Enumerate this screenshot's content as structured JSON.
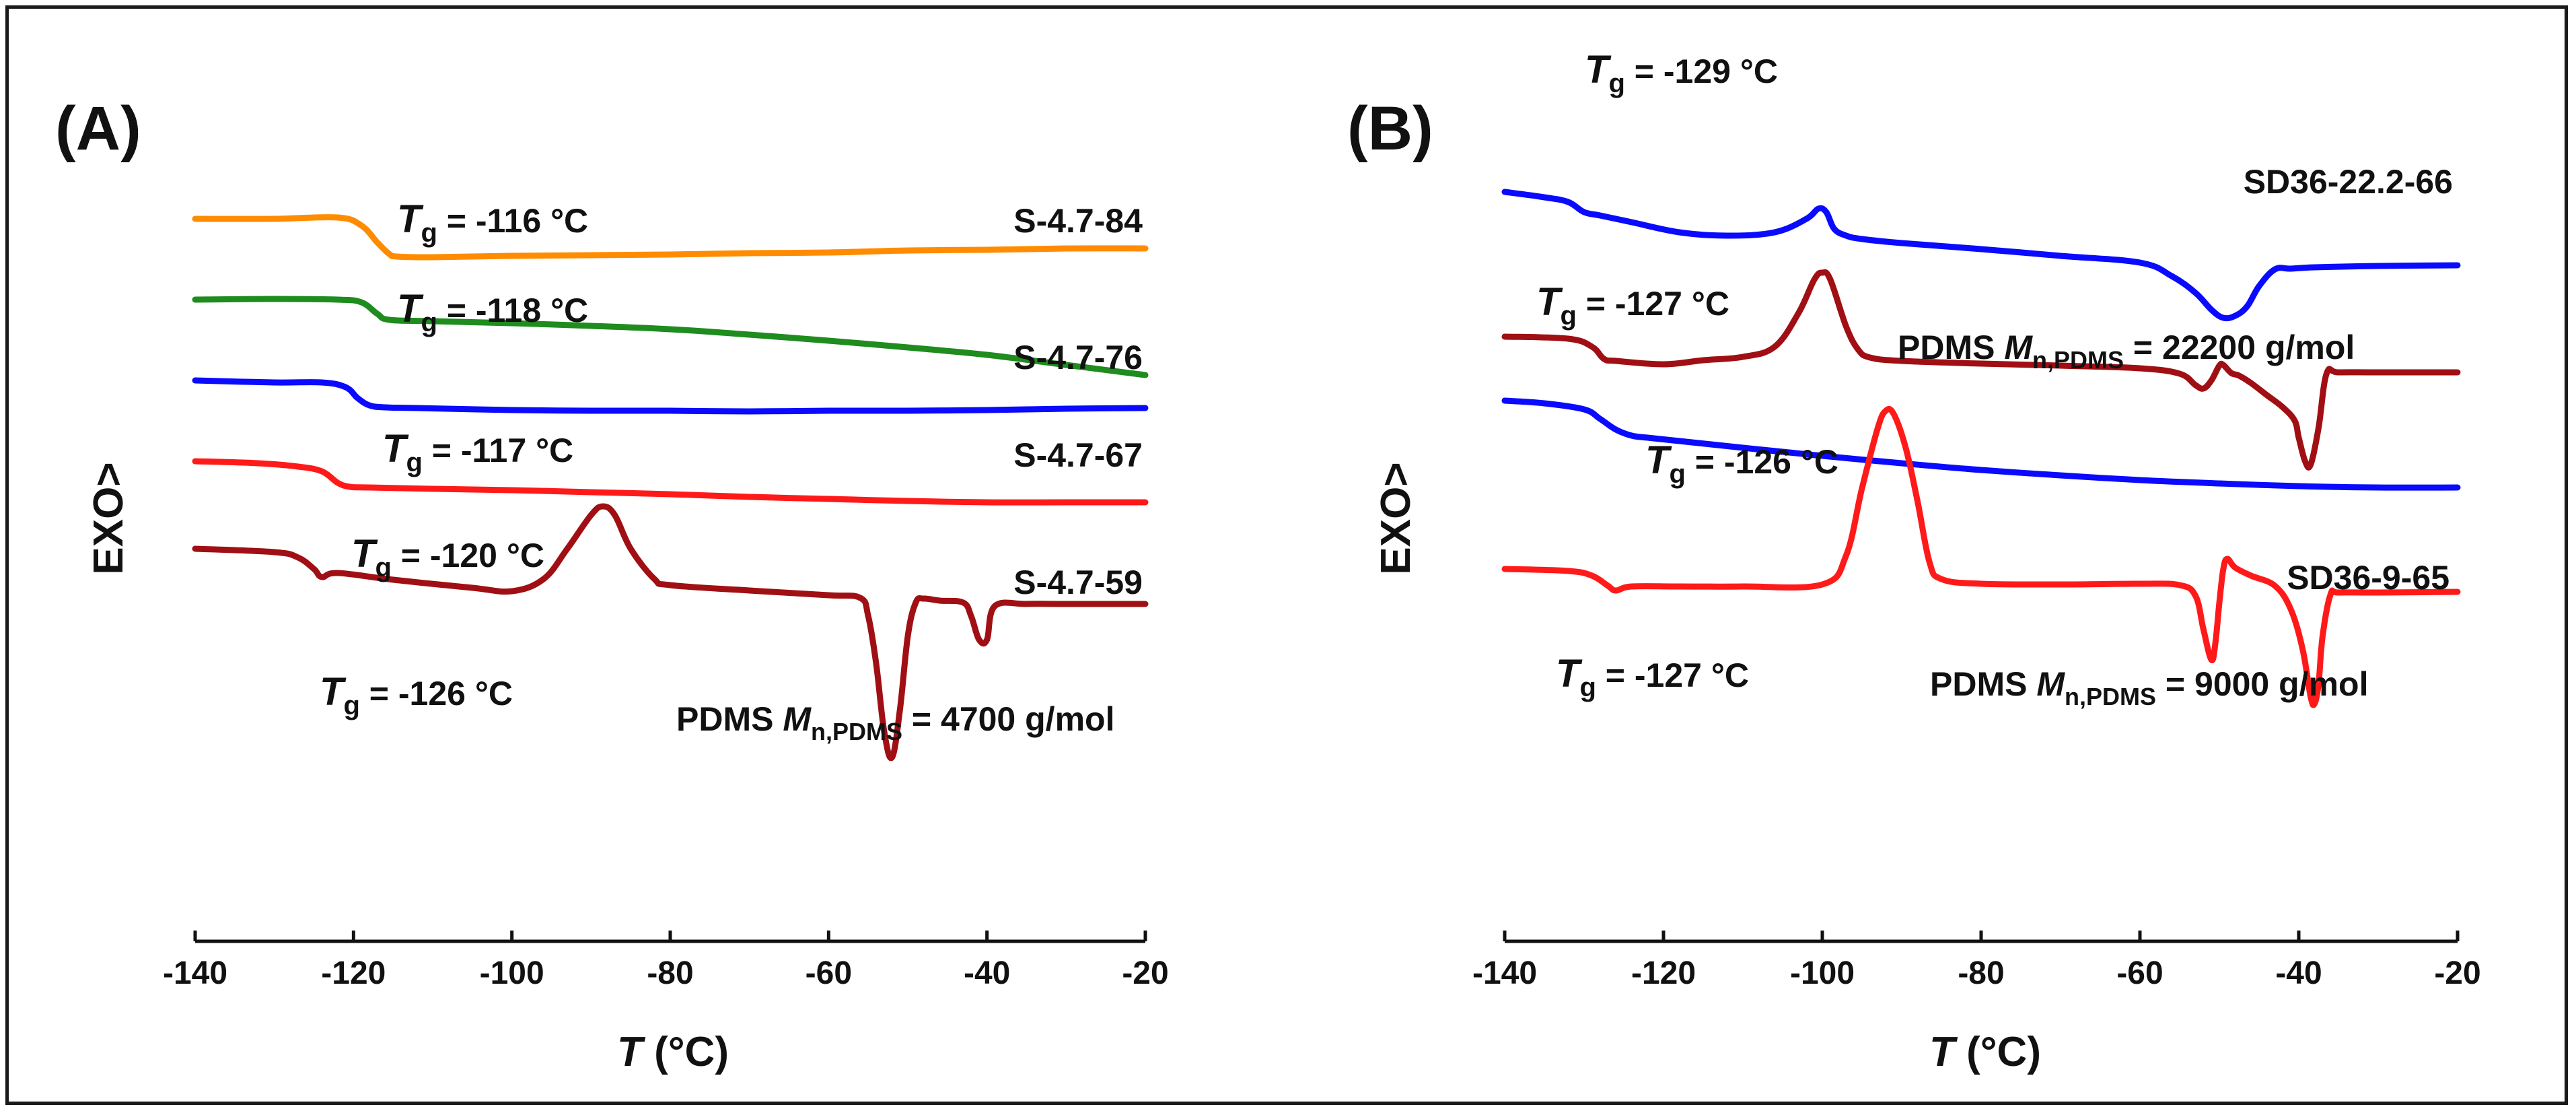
{
  "chart_data": [
    {
      "type": "line",
      "panel": "(A)",
      "xlabel": "T (°C)",
      "ylabel": "EXO>",
      "xlim": [
        -140,
        -20
      ],
      "xticks": [
        -140,
        -120,
        -100,
        -80,
        -60,
        -40,
        -20
      ],
      "tick_labels": [
        "-140",
        "-120",
        "-100",
        "-80",
        "-60",
        "-40",
        "-20"
      ],
      "y_units": "arbitrary, curves offset vertically (top to bottom)",
      "series": [
        {
          "name": "S-4.7-84",
          "color": "#ff8c00",
          "tg_prefix": "T",
          "tg_sub": "g",
          "tg_text": " = -116 °C",
          "x": [
            -140,
            -130,
            -122,
            -119,
            -117,
            -115.5,
            -114.5,
            -110,
            -100,
            -90,
            -80,
            -70,
            -60,
            -50,
            -40,
            -30,
            -20
          ],
          "y": [
            33,
            33,
            33.2,
            32,
            29.5,
            27.8,
            27.4,
            27.3,
            27.5,
            27.6,
            27.7,
            27.9,
            28,
            28.3,
            28.4,
            28.6,
            28.6
          ]
        },
        {
          "name": "S-4.7-76",
          "color": "#1e8c1e",
          "tg_prefix": "T",
          "tg_sub": "g",
          "tg_text": " = -118 °C",
          "x": [
            -140,
            -130,
            -122,
            -119,
            -117,
            -115.5,
            -110,
            -100,
            -90,
            -80,
            -70,
            -60,
            -50,
            -40,
            -30,
            -20
          ],
          "y": [
            21,
            21.1,
            21,
            20.6,
            18.9,
            18,
            17.8,
            17.5,
            17.1,
            16.6,
            15.8,
            14.9,
            13.9,
            12.8,
            11.3,
            9.8
          ]
        },
        {
          "name": "S-4.7-67",
          "color": "#0a0aff",
          "tg_prefix": "T",
          "tg_sub": "g",
          "tg_text": " = -117 °C",
          "x": [
            -140,
            -130,
            -124,
            -121,
            -119.5,
            -118,
            -116,
            -112,
            -100,
            -90,
            -80,
            -70,
            -60,
            -50,
            -40,
            -30,
            -20
          ],
          "y": [
            9,
            8.7,
            8.7,
            8,
            6.4,
            5.3,
            5,
            4.9,
            4.6,
            4.5,
            4.5,
            4.4,
            4.5,
            4.5,
            4.6,
            4.8,
            4.9
          ]
        },
        {
          "name": "S-4.7-59",
          "color": "#ff1a1a",
          "tg_prefix": "T",
          "tg_sub": "g",
          "tg_text": " = -120 °C",
          "x": [
            -140,
            -132,
            -127,
            -124,
            -122,
            -120.5,
            -118,
            -110,
            -100,
            -90,
            -80,
            -70,
            -60,
            -50,
            -40,
            -30,
            -20
          ],
          "y": [
            -3,
            -3.3,
            -3.8,
            -4.5,
            -6.2,
            -6.8,
            -6.9,
            -7.1,
            -7.3,
            -7.6,
            -7.9,
            -8.3,
            -8.6,
            -8.9,
            -9.1,
            -9.1,
            -9.1
          ]
        },
        {
          "name": "PDMS Mn,PDMS = 4700 g/mol",
          "color": "#a00f14",
          "tg_prefix": "T",
          "tg_sub": "g",
          "tg_text": " = -126 °C",
          "label_main": "PDMS ",
          "label_italic": "M",
          "label_sub": "n,PDMS",
          "label_rest": " = 4700 g/mol",
          "x": [
            -140,
            -130,
            -127,
            -125,
            -124,
            -122,
            -115,
            -105,
            -100,
            -96,
            -93,
            -90,
            -88.5,
            -87,
            -85,
            -82,
            -80,
            -70,
            -60,
            -56,
            -55,
            -54,
            -53,
            -52,
            -51,
            -50,
            -49,
            -48,
            -46,
            -43,
            -42,
            -41,
            -40,
            -39,
            -35,
            -30,
            -20
          ],
          "y": [
            -16,
            -16.5,
            -17.3,
            -19,
            -20.2,
            -19.6,
            -20.6,
            -21.8,
            -22.3,
            -20.5,
            -16,
            -11,
            -9.7,
            -11,
            -16,
            -20.5,
            -21.4,
            -22.2,
            -22.9,
            -23.3,
            -26,
            -33,
            -43,
            -47,
            -40,
            -29,
            -24,
            -23.4,
            -23.7,
            -24,
            -26,
            -29.5,
            -29.5,
            -24.5,
            -24.2,
            -24.2,
            -24.2
          ]
        }
      ]
    },
    {
      "type": "line",
      "panel": "(B)",
      "xlabel": "T (°C)",
      "ylabel": "EXO>",
      "xlim": [
        -140,
        -20
      ],
      "xticks": [
        -140,
        -120,
        -100,
        -80,
        -60,
        -40,
        -20
      ],
      "tick_labels": [
        "-140",
        "-120",
        "-100",
        "-80",
        "-60",
        "-40",
        "-20"
      ],
      "y_units": "arbitrary, curves offset vertically (top to bottom)",
      "series": [
        {
          "name": "SD36-22.2-66",
          "color": "#0a0aff",
          "tg_prefix": "T",
          "tg_sub": "g",
          "tg_text": " = -129 °C",
          "x": [
            -140,
            -135,
            -132,
            -130,
            -128,
            -124,
            -118,
            -112,
            -106,
            -102,
            -100.5,
            -99.5,
            -98.5,
            -97,
            -95,
            -90,
            -80,
            -70,
            -60,
            -56,
            -53,
            -51,
            -49.5,
            -48,
            -46.5,
            -45,
            -43,
            -41,
            -38,
            -30,
            -20
          ],
          "y": [
            34,
            33.2,
            32.5,
            31,
            30.5,
            29.5,
            28,
            27.5,
            28,
            30,
            31.5,
            31,
            28.5,
            27.5,
            27,
            26.4,
            25.5,
            24.5,
            23.5,
            21.5,
            19,
            16.5,
            15.3,
            15.6,
            17,
            20,
            22.5,
            22.6,
            22.8,
            23,
            23.1
          ]
        },
        {
          "name": "PDMS Mn,PDMS = 22200 g/mol",
          "color": "#a00f14",
          "tg_prefix": "T",
          "tg_sub": "g",
          "tg_text": " = -127 °C",
          "label_main": "PDMS ",
          "label_italic": "M",
          "label_sub": "n,PDMS",
          "label_rest": " = 22200 g/mol",
          "x": [
            -140,
            -132,
            -129,
            -127.5,
            -126,
            -120,
            -115,
            -110,
            -106,
            -103,
            -101,
            -100,
            -99,
            -97,
            -95.5,
            -94,
            -90,
            -80,
            -70,
            -60,
            -55,
            -53,
            -52,
            -51,
            -50,
            -49.5,
            -48.5,
            -47.5,
            -46,
            -44,
            -42,
            -40.5,
            -40,
            -39.2,
            -38.5,
            -37.5,
            -36.5,
            -35,
            -30,
            -20
          ],
          "y": [
            12.5,
            12.2,
            11,
            9.2,
            8.9,
            8.4,
            9,
            9.5,
            11,
            16,
            21,
            22,
            21,
            14,
            10.6,
            9.4,
            8.9,
            8.5,
            8.2,
            7.8,
            7,
            5.3,
            4.8,
            6,
            8.2,
            8.3,
            7.1,
            6.7,
            5.6,
            3.8,
            2,
            0,
            -2.5,
            -6,
            -6.5,
            -1,
            7,
            7.2,
            7.2,
            7.2
          ]
        },
        {
          "name": "SD36-9-65",
          "color": "#0a0aff",
          "tg_prefix": "T",
          "tg_sub": "g",
          "tg_text": " = -126 °C",
          "x": [
            -140,
            -135,
            -130,
            -128,
            -126,
            -124,
            -122,
            -118,
            -110,
            -100,
            -90,
            -80,
            -70,
            -60,
            -50,
            -40,
            -30,
            -20
          ],
          "y": [
            3,
            2.6,
            1.7,
            0.3,
            -1.3,
            -2.2,
            -2.5,
            -3,
            -4,
            -5.2,
            -6.3,
            -7.3,
            -8.1,
            -8.8,
            -9.3,
            -9.7,
            -9.9,
            -9.9
          ]
        },
        {
          "name": "PDMS Mn,PDMS = 9000 g/mol",
          "color": "#ff1a1a",
          "tg_prefix": "T",
          "tg_sub": "g",
          "tg_text": " = -127 °C",
          "label_main": "PDMS ",
          "label_italic": "M",
          "label_sub": "n,PDMS",
          "label_rest": " = 9000 g/mol",
          "x": [
            -140,
            -132,
            -129,
            -127,
            -126,
            -124,
            -118,
            -110,
            -100,
            -97,
            -95,
            -93,
            -92,
            -91,
            -89.5,
            -88,
            -86.5,
            -85,
            -80,
            -70,
            -60,
            -55,
            -53,
            -52,
            -51,
            -50.5,
            -50,
            -49.5,
            -49,
            -48,
            -46,
            -43,
            -41,
            -39.5,
            -38.5,
            -38,
            -37.5,
            -37,
            -36,
            -35,
            -30,
            -20
          ],
          "y": [
            -22,
            -22.3,
            -23,
            -24.5,
            -25.2,
            -24.6,
            -24.6,
            -24.6,
            -24.3,
            -20,
            -10,
            -1,
            1.5,
            1,
            -4,
            -12,
            -21,
            -23.5,
            -24.2,
            -24.3,
            -24.2,
            -24.4,
            -26,
            -31,
            -35.5,
            -33,
            -27,
            -22,
            -20.5,
            -21.8,
            -23,
            -24.5,
            -28,
            -34,
            -41,
            -42,
            -39,
            -32,
            -25.8,
            -25.5,
            -25.5,
            -25.4
          ]
        }
      ]
    }
  ]
}
